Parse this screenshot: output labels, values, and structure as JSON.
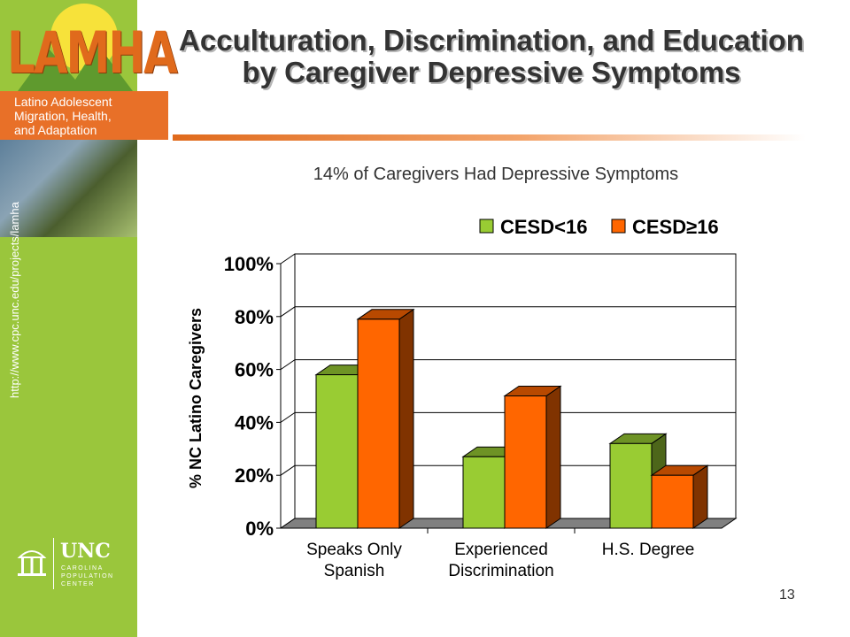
{
  "sidebar": {
    "logo_word": "LAMHA",
    "logo_lines": [
      "Latino Adolescent",
      "Migration, Health,",
      "and Adaptation"
    ],
    "url": "http://www.cpc.unc.edu/projects/lamha",
    "unc_name": "UNC",
    "unc_sub": "CAROLINA POPULATION CENTER"
  },
  "slide": {
    "title": "Acculturation, Discrimination, and Education by Caregiver Depressive Symptoms",
    "subtitle": "14% of Caregivers Had Depressive Symptoms",
    "page_number": "13"
  },
  "colors": {
    "sidebar_green": "#9ac63c",
    "accent_orange": "#e87028",
    "series_1": "#99cc33",
    "series_2": "#ff6600"
  },
  "chart_data": {
    "type": "bar",
    "style": "3d-clustered",
    "categories": [
      [
        "Speaks Only",
        "Spanish"
      ],
      [
        "Experienced",
        "Discrimination"
      ],
      [
        "H.S. Degree"
      ]
    ],
    "series": [
      {
        "name": "CESD<16",
        "values": [
          58,
          27,
          32
        ]
      },
      {
        "name": "CESD≥16",
        "values": [
          79,
          50,
          20
        ]
      }
    ],
    "ylabel": "% NC Latino Caregivers",
    "ylim": [
      0,
      100
    ],
    "yticks": [
      "0%",
      "20%",
      "40%",
      "60%",
      "80%",
      "100%"
    ],
    "grid": true,
    "legend": "top-right"
  }
}
